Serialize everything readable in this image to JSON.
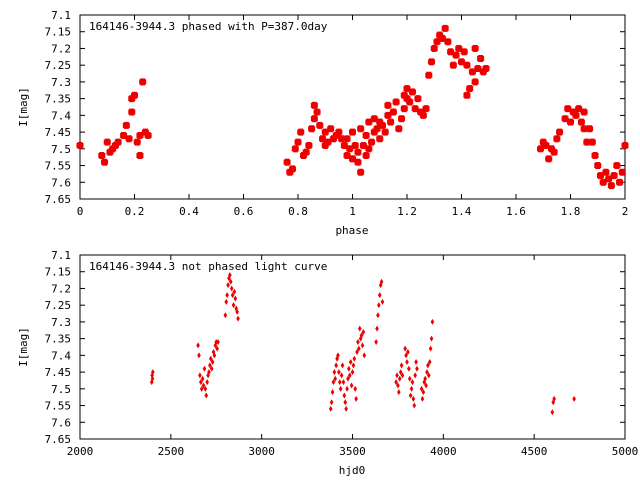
{
  "chart_data": [
    {
      "type": "scatter",
      "title": "164146-3944.3 phased with P=387.0day",
      "xlabel": "phase",
      "ylabel": "I[mag]",
      "xlim": [
        0,
        2
      ],
      "ylim": [
        7.1,
        7.65
      ],
      "y_inverted": true,
      "x_ticks": [
        "0",
        "0.2",
        "0.4",
        "0.6",
        "0.8",
        "1",
        "1.2",
        "1.4",
        "1.6",
        "1.8",
        "2"
      ],
      "y_ticks": [
        "7.1",
        "7.15",
        "7.2",
        "7.25",
        "7.3",
        "7.35",
        "7.4",
        "7.45",
        "7.5",
        "7.55",
        "7.6",
        "7.65"
      ],
      "grid": false,
      "marker_color": "#ee0000",
      "series": [
        {
          "points": [
            [
              0.0,
              7.49
            ],
            [
              0.08,
              7.52
            ],
            [
              0.09,
              7.54
            ],
            [
              0.1,
              7.48
            ],
            [
              0.11,
              7.51
            ],
            [
              0.12,
              7.5
            ],
            [
              0.13,
              7.49
            ],
            [
              0.14,
              7.48
            ],
            [
              0.16,
              7.46
            ],
            [
              0.17,
              7.43
            ],
            [
              0.18,
              7.47
            ],
            [
              0.19,
              7.39
            ],
            [
              0.19,
              7.35
            ],
            [
              0.2,
              7.34
            ],
            [
              0.21,
              7.48
            ],
            [
              0.22,
              7.52
            ],
            [
              0.22,
              7.46
            ],
            [
              0.23,
              7.3
            ],
            [
              0.24,
              7.45
            ],
            [
              0.25,
              7.46
            ],
            [
              0.76,
              7.54
            ],
            [
              0.77,
              7.57
            ],
            [
              0.78,
              7.56
            ],
            [
              0.79,
              7.5
            ],
            [
              0.8,
              7.48
            ],
            [
              0.81,
              7.45
            ],
            [
              0.82,
              7.52
            ],
            [
              0.83,
              7.51
            ],
            [
              0.84,
              7.49
            ],
            [
              0.85,
              7.44
            ],
            [
              0.86,
              7.41
            ],
            [
              0.86,
              7.37
            ],
            [
              0.87,
              7.39
            ],
            [
              0.88,
              7.43
            ],
            [
              0.89,
              7.47
            ],
            [
              0.9,
              7.49
            ],
            [
              0.9,
              7.45
            ],
            [
              0.91,
              7.48
            ],
            [
              0.92,
              7.44
            ],
            [
              0.93,
              7.47
            ],
            [
              0.94,
              7.46
            ],
            [
              0.95,
              7.45
            ],
            [
              0.96,
              7.47
            ],
            [
              0.97,
              7.49
            ],
            [
              0.98,
              7.52
            ],
            [
              0.98,
              7.47
            ],
            [
              0.99,
              7.5
            ],
            [
              1.0,
              7.53
            ],
            [
              1.0,
              7.45
            ],
            [
              1.01,
              7.49
            ],
            [
              1.02,
              7.54
            ],
            [
              1.02,
              7.51
            ],
            [
              1.03,
              7.57
            ],
            [
              1.03,
              7.44
            ],
            [
              1.04,
              7.49
            ],
            [
              1.05,
              7.52
            ],
            [
              1.05,
              7.46
            ],
            [
              1.06,
              7.5
            ],
            [
              1.06,
              7.42
            ],
            [
              1.07,
              7.48
            ],
            [
              1.08,
              7.45
            ],
            [
              1.08,
              7.41
            ],
            [
              1.09,
              7.44
            ],
            [
              1.1,
              7.47
            ],
            [
              1.1,
              7.42
            ],
            [
              1.11,
              7.43
            ],
            [
              1.12,
              7.45
            ],
            [
              1.13,
              7.4
            ],
            [
              1.13,
              7.37
            ],
            [
              1.14,
              7.42
            ],
            [
              1.15,
              7.39
            ],
            [
              1.16,
              7.36
            ],
            [
              1.17,
              7.44
            ],
            [
              1.18,
              7.41
            ],
            [
              1.19,
              7.38
            ],
            [
              1.19,
              7.34
            ],
            [
              1.2,
              7.32
            ],
            [
              1.2,
              7.35
            ],
            [
              1.21,
              7.36
            ],
            [
              1.22,
              7.33
            ],
            [
              1.23,
              7.38
            ],
            [
              1.24,
              7.35
            ],
            [
              1.25,
              7.39
            ],
            [
              1.26,
              7.4
            ],
            [
              1.27,
              7.38
            ],
            [
              1.28,
              7.28
            ],
            [
              1.29,
              7.24
            ],
            [
              1.3,
              7.2
            ],
            [
              1.31,
              7.18
            ],
            [
              1.32,
              7.16
            ],
            [
              1.33,
              7.17
            ],
            [
              1.34,
              7.14
            ],
            [
              1.35,
              7.18
            ],
            [
              1.36,
              7.21
            ],
            [
              1.37,
              7.25
            ],
            [
              1.38,
              7.22
            ],
            [
              1.39,
              7.2
            ],
            [
              1.4,
              7.24
            ],
            [
              1.41,
              7.21
            ],
            [
              1.42,
              7.25
            ],
            [
              1.42,
              7.34
            ],
            [
              1.43,
              7.32
            ],
            [
              1.44,
              7.27
            ],
            [
              1.45,
              7.3
            ],
            [
              1.45,
              7.2
            ],
            [
              1.46,
              7.26
            ],
            [
              1.47,
              7.23
            ],
            [
              1.48,
              7.27
            ],
            [
              1.49,
              7.26
            ],
            [
              1.69,
              7.5
            ],
            [
              1.7,
              7.48
            ],
            [
              1.71,
              7.49
            ],
            [
              1.72,
              7.53
            ],
            [
              1.73,
              7.5
            ],
            [
              1.74,
              7.51
            ],
            [
              1.75,
              7.47
            ],
            [
              1.76,
              7.45
            ],
            [
              1.78,
              7.41
            ],
            [
              1.79,
              7.38
            ],
            [
              1.8,
              7.42
            ],
            [
              1.81,
              7.39
            ],
            [
              1.82,
              7.4
            ],
            [
              1.83,
              7.38
            ],
            [
              1.84,
              7.42
            ],
            [
              1.85,
              7.44
            ],
            [
              1.85,
              7.39
            ],
            [
              1.86,
              7.48
            ],
            [
              1.87,
              7.44
            ],
            [
              1.88,
              7.48
            ],
            [
              1.89,
              7.52
            ],
            [
              1.9,
              7.55
            ],
            [
              1.91,
              7.58
            ],
            [
              1.92,
              7.6
            ],
            [
              1.93,
              7.57
            ],
            [
              1.94,
              7.59
            ],
            [
              1.95,
              7.61
            ],
            [
              1.96,
              7.58
            ],
            [
              1.97,
              7.55
            ],
            [
              1.98,
              7.6
            ],
            [
              1.99,
              7.57
            ],
            [
              2.0,
              7.49
            ]
          ]
        }
      ]
    },
    {
      "type": "scatter",
      "title": "164146-3944.3 not phased light curve",
      "xlabel": "hjd0",
      "ylabel": "I[mag]",
      "xlim": [
        2000,
        5000
      ],
      "ylim": [
        7.1,
        7.65
      ],
      "y_inverted": true,
      "x_ticks": [
        "2000",
        "2500",
        "3000",
        "3500",
        "4000",
        "4500",
        "5000"
      ],
      "y_ticks": [
        "7.1",
        "7.15",
        "7.2",
        "7.25",
        "7.3",
        "7.35",
        "7.4",
        "7.45",
        "7.5",
        "7.55",
        "7.6",
        "7.65"
      ],
      "grid": false,
      "marker_color": "#ee0000",
      "series": [
        {
          "points": [
            [
              2395,
              7.48
            ],
            [
              2397,
              7.46
            ],
            [
              2399,
              7.47
            ],
            [
              2401,
              7.45
            ],
            [
              2650,
              7.37
            ],
            [
              2655,
              7.4
            ],
            [
              2660,
              7.46
            ],
            [
              2665,
              7.48
            ],
            [
              2670,
              7.5
            ],
            [
              2675,
              7.47
            ],
            [
              2680,
              7.49
            ],
            [
              2685,
              7.44
            ],
            [
              2690,
              7.5
            ],
            [
              2695,
              7.52
            ],
            [
              2700,
              7.48
            ],
            [
              2705,
              7.46
            ],
            [
              2710,
              7.45
            ],
            [
              2715,
              7.43
            ],
            [
              2720,
              7.41
            ],
            [
              2725,
              7.44
            ],
            [
              2730,
              7.42
            ],
            [
              2735,
              7.39
            ],
            [
              2740,
              7.4
            ],
            [
              2745,
              7.37
            ],
            [
              2750,
              7.36
            ],
            [
              2755,
              7.38
            ],
            [
              2760,
              7.36
            ],
            [
              2800,
              7.28
            ],
            [
              2805,
              7.24
            ],
            [
              2810,
              7.22
            ],
            [
              2815,
              7.19
            ],
            [
              2820,
              7.17
            ],
            [
              2825,
              7.16
            ],
            [
              2830,
              7.18
            ],
            [
              2835,
              7.2
            ],
            [
              2840,
              7.22
            ],
            [
              2845,
              7.25
            ],
            [
              2850,
              7.21
            ],
            [
              2855,
              7.23
            ],
            [
              2860,
              7.26
            ],
            [
              2865,
              7.27
            ],
            [
              2870,
              7.29
            ],
            [
              3380,
              7.56
            ],
            [
              3385,
              7.54
            ],
            [
              3390,
              7.51
            ],
            [
              3395,
              7.48
            ],
            [
              3400,
              7.45
            ],
            [
              3405,
              7.47
            ],
            [
              3410,
              7.43
            ],
            [
              3415,
              7.41
            ],
            [
              3420,
              7.4
            ],
            [
              3425,
              7.45
            ],
            [
              3430,
              7.48
            ],
            [
              3435,
              7.5
            ],
            [
              3440,
              7.46
            ],
            [
              3445,
              7.43
            ],
            [
              3450,
              7.48
            ],
            [
              3455,
              7.52
            ],
            [
              3460,
              7.54
            ],
            [
              3465,
              7.56
            ],
            [
              3470,
              7.5
            ],
            [
              3475,
              7.47
            ],
            [
              3480,
              7.44
            ],
            [
              3485,
              7.46
            ],
            [
              3490,
              7.42
            ],
            [
              3495,
              7.49
            ],
            [
              3500,
              7.45
            ],
            [
              3505,
              7.43
            ],
            [
              3510,
              7.41
            ],
            [
              3515,
              7.5
            ],
            [
              3520,
              7.53
            ],
            [
              3525,
              7.39
            ],
            [
              3530,
              7.36
            ],
            [
              3535,
              7.38
            ],
            [
              3540,
              7.32
            ],
            [
              3545,
              7.35
            ],
            [
              3550,
              7.34
            ],
            [
              3555,
              7.37
            ],
            [
              3560,
              7.33
            ],
            [
              3565,
              7.4
            ],
            [
              3630,
              7.36
            ],
            [
              3635,
              7.32
            ],
            [
              3640,
              7.28
            ],
            [
              3645,
              7.25
            ],
            [
              3650,
              7.22
            ],
            [
              3655,
              7.19
            ],
            [
              3660,
              7.18
            ],
            [
              3665,
              7.24
            ],
            [
              3740,
              7.48
            ],
            [
              3745,
              7.46
            ],
            [
              3750,
              7.49
            ],
            [
              3755,
              7.51
            ],
            [
              3760,
              7.47
            ],
            [
              3765,
              7.45
            ],
            [
              3770,
              7.43
            ],
            [
              3775,
              7.46
            ],
            [
              3790,
              7.38
            ],
            [
              3795,
              7.4
            ],
            [
              3800,
              7.42
            ],
            [
              3805,
              7.39
            ],
            [
              3810,
              7.44
            ],
            [
              3815,
              7.47
            ],
            [
              3820,
              7.52
            ],
            [
              3825,
              7.5
            ],
            [
              3830,
              7.48
            ],
            [
              3835,
              7.53
            ],
            [
              3840,
              7.55
            ],
            [
              3845,
              7.46
            ],
            [
              3850,
              7.42
            ],
            [
              3855,
              7.44
            ],
            [
              3880,
              7.5
            ],
            [
              3885,
              7.53
            ],
            [
              3890,
              7.51
            ],
            [
              3895,
              7.48
            ],
            [
              3900,
              7.47
            ],
            [
              3905,
              7.49
            ],
            [
              3910,
              7.45
            ],
            [
              3915,
              7.43
            ],
            [
              3920,
              7.46
            ],
            [
              3925,
              7.42
            ],
            [
              3930,
              7.38
            ],
            [
              3935,
              7.35
            ],
            [
              3940,
              7.3
            ],
            [
              4600,
              7.57
            ],
            [
              4605,
              7.54
            ],
            [
              4610,
              7.53
            ],
            [
              4720,
              7.53
            ]
          ]
        }
      ]
    }
  ]
}
